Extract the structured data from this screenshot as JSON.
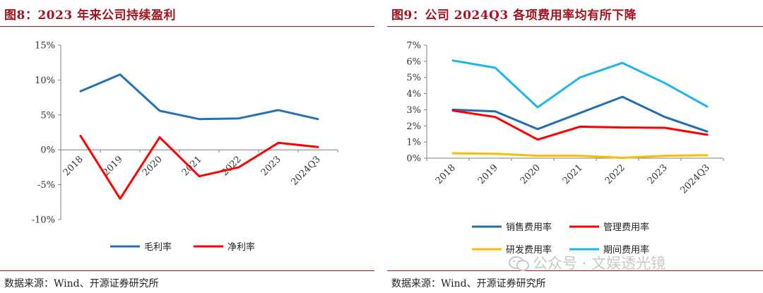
{
  "left": {
    "title": "图8：2023 年来公司持续盈利",
    "source": "数据来源：Wind、开源证券研究所",
    "chart_data": {
      "type": "line",
      "categories": [
        "2018",
        "2019",
        "2020",
        "2021",
        "2022",
        "2023",
        "2024Q3"
      ],
      "ylim": [
        -10,
        15
      ],
      "yticks": [
        "15%",
        "10%",
        "5%",
        "0%",
        "-5%",
        "-10%"
      ],
      "ytick_values": [
        15,
        10,
        5,
        0,
        -5,
        -10
      ],
      "legend_position": "bottom",
      "series": [
        {
          "name": "毛利率",
          "color": "#2272b5",
          "values": [
            8.4,
            10.8,
            5.6,
            4.4,
            4.5,
            5.7,
            4.4
          ]
        },
        {
          "name": "净利率",
          "color": "#ff0000",
          "values": [
            2.0,
            -7.0,
            1.8,
            -3.8,
            -2.5,
            1.0,
            0.4
          ]
        }
      ]
    }
  },
  "right": {
    "title": "图9：公司 2024Q3 各项费用率均有所下降",
    "source": "数据来源：Wind、开源证券研究所",
    "chart_data": {
      "type": "line",
      "categories": [
        "2018",
        "2019",
        "2020",
        "2021",
        "2022",
        "2023",
        "2024Q3"
      ],
      "ylim": [
        0,
        7
      ],
      "yticks": [
        "7%",
        "6%",
        "5%",
        "4%",
        "3%",
        "2%",
        "1%",
        "0%"
      ],
      "ytick_values": [
        7,
        6,
        5,
        4,
        3,
        2,
        1,
        0
      ],
      "legend_position": "bottom",
      "series": [
        {
          "name": "销售费用率",
          "color": "#1f6db3",
          "values": [
            3.0,
            2.9,
            1.8,
            2.8,
            3.8,
            2.55,
            1.65
          ]
        },
        {
          "name": "管理费用率",
          "color": "#ff0000",
          "values": [
            2.95,
            2.55,
            1.15,
            1.95,
            1.9,
            1.88,
            1.45
          ]
        },
        {
          "name": "研发费用率",
          "color": "#f5be00",
          "values": [
            0.3,
            0.27,
            0.15,
            0.15,
            0.02,
            0.15,
            0.18
          ]
        },
        {
          "name": "期间费用率",
          "color": "#1eb4ec",
          "values": [
            6.05,
            5.6,
            3.15,
            5.0,
            5.9,
            4.65,
            3.2
          ]
        }
      ]
    }
  },
  "watermark": "公众号 · 文娱透光镜"
}
